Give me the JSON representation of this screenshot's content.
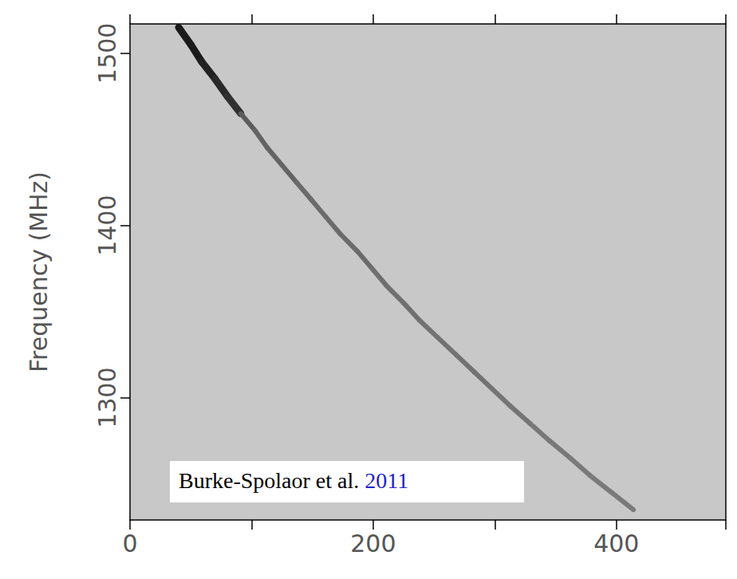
{
  "chart_data": {
    "type": "line",
    "ylabel": "Frequency (MHz)",
    "annotation": "Burke-Spolaor et al. 2011",
    "x": [
      40,
      50,
      59,
      70,
      80,
      91,
      103,
      113,
      125,
      137,
      149,
      161,
      173,
      187,
      199,
      211,
      225,
      238,
      253,
      268,
      283,
      298,
      313,
      329,
      345,
      362,
      378,
      396,
      414
    ],
    "values": [
      1515,
      1505,
      1495,
      1485,
      1475,
      1465,
      1455,
      1445,
      1435,
      1425,
      1415,
      1405,
      1395,
      1385,
      1375,
      1365,
      1355,
      1345,
      1335,
      1325,
      1315,
      1305,
      1295,
      1285,
      1275,
      1265,
      1255,
      1245,
      1235
    ],
    "intensity": [
      1.0,
      1.0,
      0.95,
      0.9,
      0.85,
      0.55,
      0.5,
      0.5,
      0.5,
      0.45,
      0.45,
      0.45,
      0.45,
      0.45,
      0.42,
      0.42,
      0.42,
      0.4,
      0.4,
      0.4,
      0.4,
      0.38,
      0.38,
      0.36,
      0.36,
      0.35,
      0.35,
      0.35,
      0.35
    ],
    "color": "#1a1a1a",
    "xlim": [
      0,
      490
    ],
    "xticks": [
      0,
      200,
      400
    ],
    "ylim": [
      1229,
      1517
    ],
    "yticks": [
      1300,
      1400,
      1500
    ],
    "grid": false
  }
}
